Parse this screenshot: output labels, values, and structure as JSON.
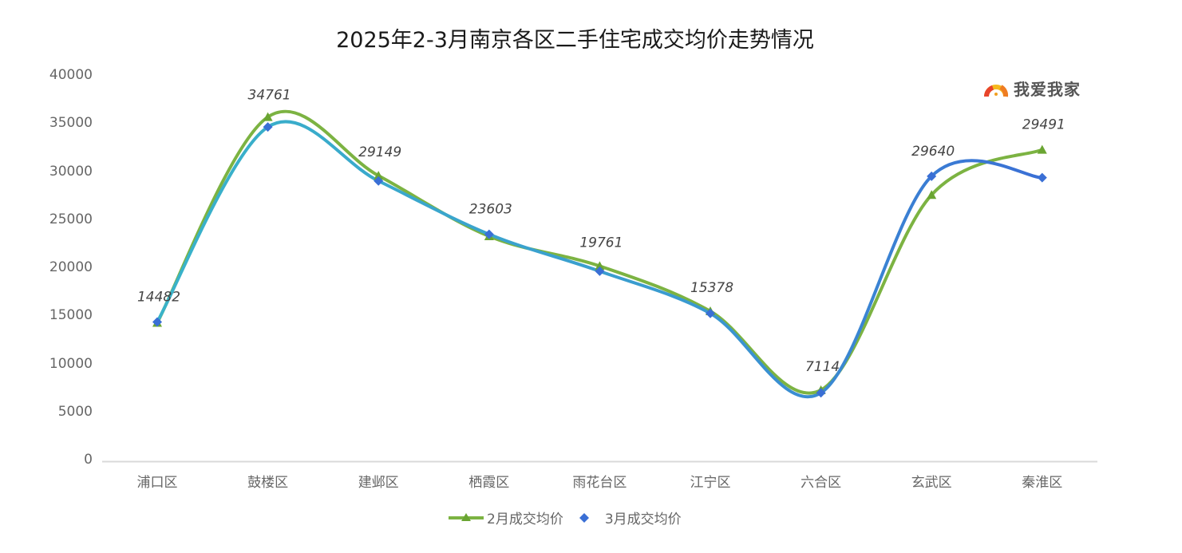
{
  "chart_data": {
    "type": "line",
    "title": "2025年2-3月南京各区二手住宅成交均价走势情况",
    "xlabel": "",
    "ylabel": "",
    "ylim": [
      0,
      40000
    ],
    "yticks": [
      0,
      5000,
      10000,
      15000,
      20000,
      25000,
      30000,
      35000,
      40000
    ],
    "grid": false,
    "smooth": true,
    "legend_position": "bottom",
    "categories": [
      "浦口区",
      "鼓楼区",
      "建邺区",
      "栖霞区",
      "雨花台区",
      "江宁区",
      "六合区",
      "玄武区",
      "秦淮区"
    ],
    "series": [
      {
        "name": "2月成交均价",
        "color": "#7cb342",
        "marker": "triangle",
        "values": [
          14400,
          35800,
          29700,
          23400,
          20300,
          15600,
          7400,
          27700,
          32400
        ],
        "data_labels": false
      },
      {
        "name": "3月成交均价",
        "color": "#3a7bd5",
        "color_start": "#39b3c9",
        "marker": "diamond",
        "values": [
          14482,
          34761,
          29149,
          23603,
          19761,
          15378,
          7114,
          29640,
          29491
        ],
        "data_labels": true
      }
    ]
  },
  "title": "2025年2-3月南京各区二手住宅成交均价走势情况",
  "logo": {
    "text": "我爱我家",
    "icon": "house-logo-icon"
  },
  "yaxis": {
    "ticks": [
      "40000",
      "35000",
      "30000",
      "25000",
      "20000",
      "15000",
      "10000",
      "5000",
      "0"
    ]
  },
  "xaxis": {
    "ticks": [
      "浦口区",
      "鼓楼区",
      "建邺区",
      "栖霞区",
      "雨花台区",
      "江宁区",
      "六合区",
      "玄武区",
      "秦淮区"
    ]
  },
  "legend": {
    "items": [
      {
        "label": "2月成交均价",
        "color": "#7cb342",
        "marker": "triangle"
      },
      {
        "label": "3月成交均价",
        "color": "#3a7bd5",
        "marker": "diamond"
      }
    ]
  },
  "data_labels": [
    "14482",
    "34761",
    "29149",
    "23603",
    "19761",
    "15378",
    "7114",
    "29640",
    "29491"
  ]
}
